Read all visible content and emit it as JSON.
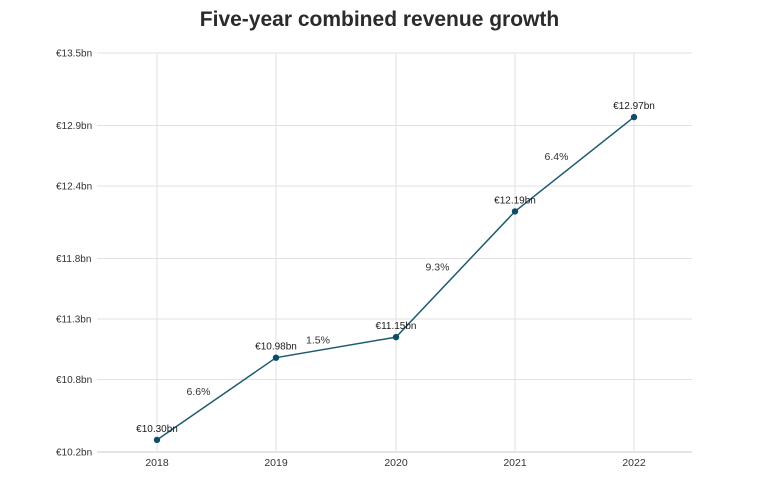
{
  "chart_data": {
    "type": "line",
    "title": "Five-year combined revenue growth",
    "xlabel": "",
    "ylabel": "",
    "categories": [
      "2018",
      "2019",
      "2020",
      "2021",
      "2022"
    ],
    "series": [
      {
        "values": [
          10.3,
          10.98,
          11.15,
          12.19,
          12.97
        ],
        "point_labels": [
          "€10.30bn",
          "€10.98bn",
          "€11.15bn",
          "€12.19bn",
          "€12.97bn"
        ]
      }
    ],
    "growth_labels": [
      "6.6%",
      "1.5%",
      "9.3%",
      "6.4%"
    ],
    "y_ticks": [
      10.2,
      10.8,
      11.3,
      11.8,
      12.4,
      12.9,
      13.5
    ],
    "y_tick_labels": [
      "€10.2bn",
      "€10.8bn",
      "€11.3bn",
      "€11.8bn",
      "€12.4bn",
      "€12.9bn",
      "€13.5bn"
    ],
    "ylim": [
      10.2,
      13.5
    ],
    "grid": true,
    "legend": "none",
    "colors": {
      "line": "#1f5a73",
      "marker": "#0e4d68"
    }
  }
}
